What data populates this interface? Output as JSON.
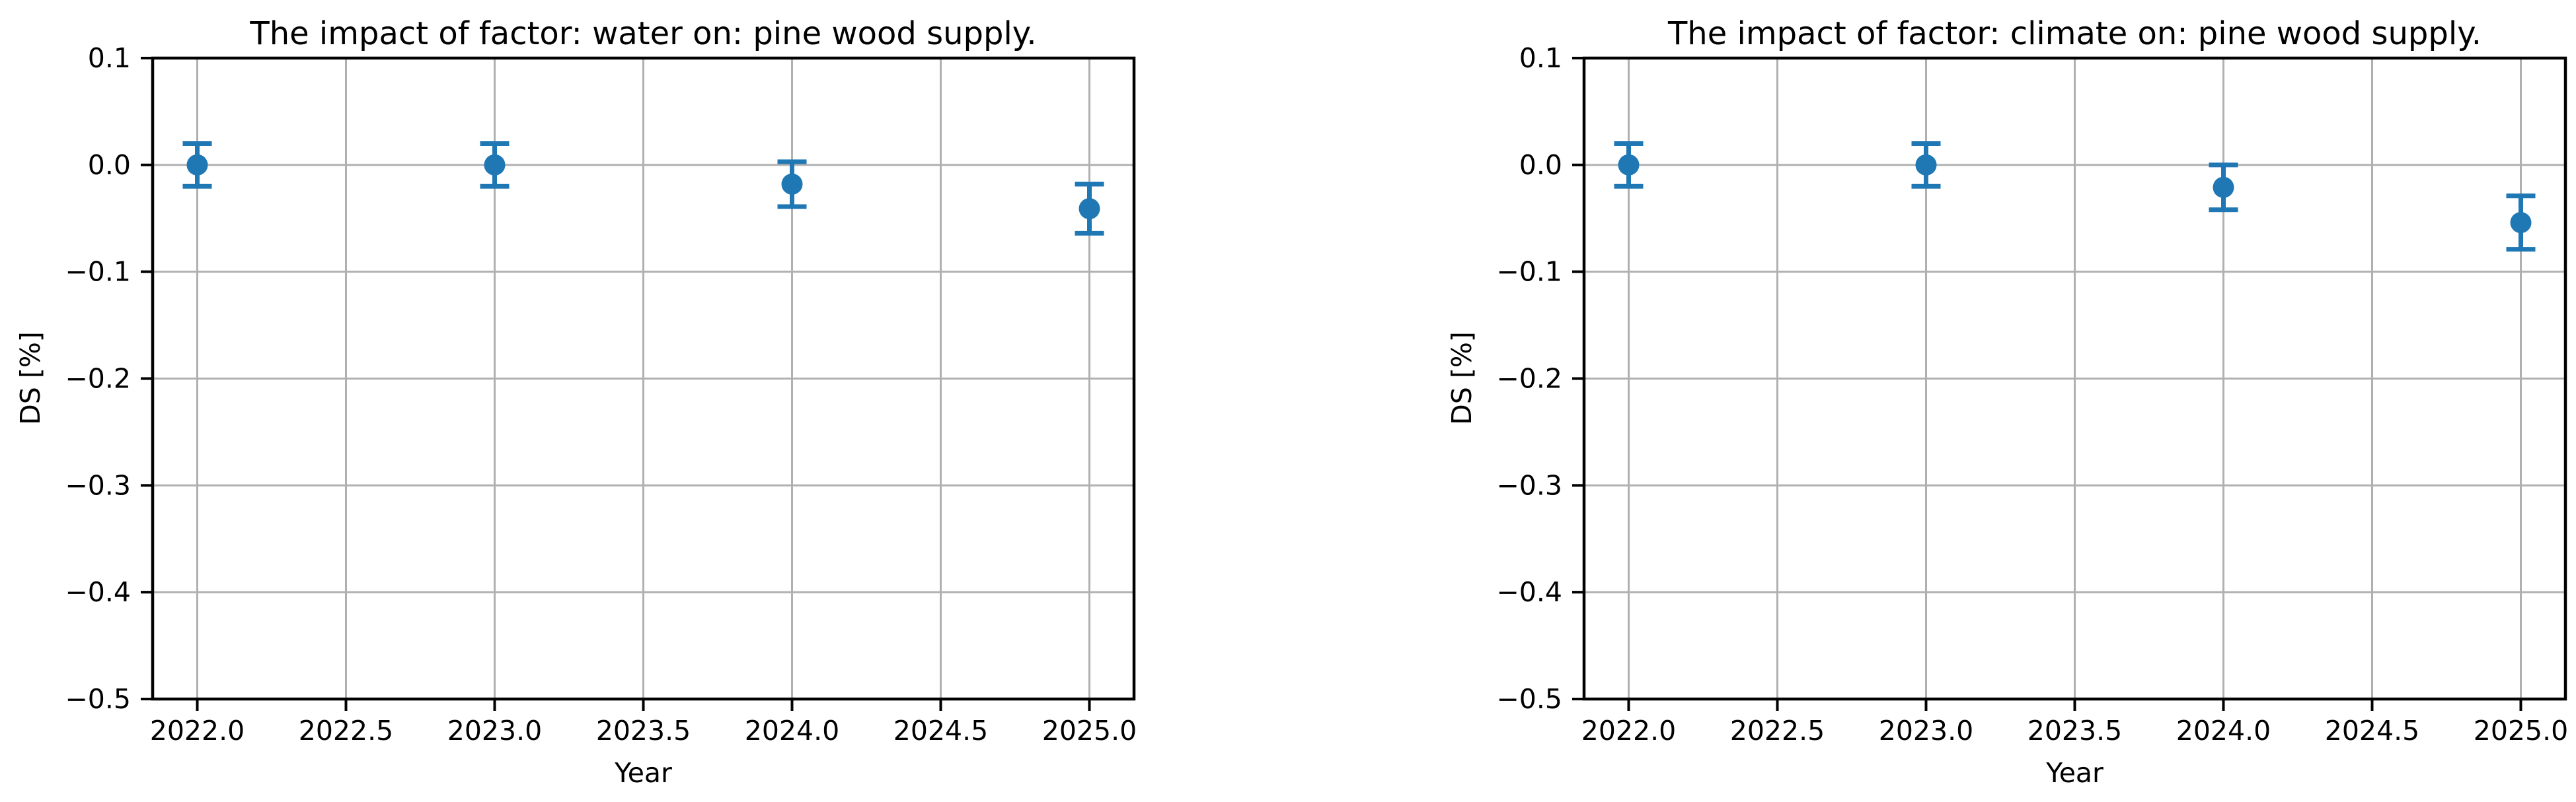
{
  "page": {
    "background": "#ffffff"
  },
  "chart_data": [
    {
      "type": "scatter",
      "title": "The impact of factor: water on: pine wood supply.",
      "xlabel": "Year",
      "ylabel": "DS [%]",
      "x": [
        2022,
        2023,
        2024,
        2025
      ],
      "y": [
        0.0,
        0.0,
        -0.018,
        -0.041
      ],
      "yerr": [
        0.02,
        0.02,
        0.021,
        0.023
      ],
      "xlim": [
        2021.85,
        2025.15
      ],
      "ylim": [
        -0.5,
        0.1
      ],
      "xticks": {
        "values": [
          2022.0,
          2022.5,
          2023.0,
          2023.5,
          2024.0,
          2024.5,
          2025.0
        ],
        "labels": [
          "2022.0",
          "2022.5",
          "2023.0",
          "2023.5",
          "2024.0",
          "2024.5",
          "2025.0"
        ]
      },
      "yticks": {
        "values": [
          0.1,
          0.0,
          -0.1,
          -0.2,
          -0.3,
          -0.4,
          -0.5
        ],
        "labels": [
          "0.1",
          "0.0",
          "−0.1",
          "−0.2",
          "−0.3",
          "−0.4",
          "−0.5"
        ]
      },
      "grid": true,
      "grid_color": "#b0b0b0",
      "marker": "circle",
      "color": "#1f77b4",
      "legend": null
    },
    {
      "type": "scatter",
      "title": "The impact of factor: climate on: pine wood supply.",
      "xlabel": "Year",
      "ylabel": "DS [%]",
      "x": [
        2022,
        2023,
        2024,
        2025
      ],
      "y": [
        0.0,
        0.0,
        -0.021,
        -0.054
      ],
      "yerr": [
        0.02,
        0.02,
        0.021,
        0.025
      ],
      "xlim": [
        2021.85,
        2025.15
      ],
      "ylim": [
        -0.5,
        0.1
      ],
      "xticks": {
        "values": [
          2022.0,
          2022.5,
          2023.0,
          2023.5,
          2024.0,
          2024.5,
          2025.0
        ],
        "labels": [
          "2022.0",
          "2022.5",
          "2023.0",
          "2023.5",
          "2024.0",
          "2024.5",
          "2025.0"
        ]
      },
      "yticks": {
        "values": [
          0.1,
          0.0,
          -0.1,
          -0.2,
          -0.3,
          -0.4,
          -0.5
        ],
        "labels": [
          "0.1",
          "0.0",
          "−0.1",
          "−0.2",
          "−0.3",
          "−0.4",
          "−0.5"
        ]
      },
      "grid": true,
      "grid_color": "#b0b0b0",
      "marker": "circle",
      "color": "#1f77b4",
      "legend": null
    }
  ]
}
